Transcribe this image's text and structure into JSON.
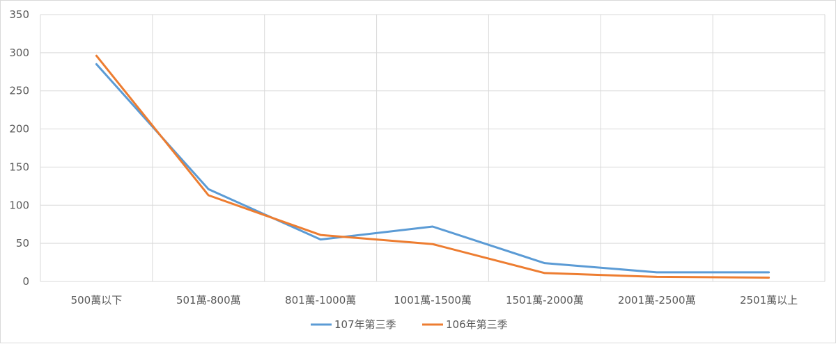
{
  "chart_data": {
    "type": "line",
    "categories": [
      "500萬以下",
      "501萬-800萬",
      "801萬-1000萬",
      "1001萬-1500萬",
      "1501萬-2000萬",
      "2001萬-2500萬",
      "2501萬以上"
    ],
    "series": [
      {
        "name": "107年第三季",
        "color": "#5b9bd5",
        "values": [
          285,
          121,
          55,
          72,
          24,
          12,
          12
        ]
      },
      {
        "name": "106年第三季",
        "color": "#ed7d31",
        "values": [
          296,
          113,
          61,
          49,
          11,
          6,
          5
        ]
      }
    ],
    "y_ticks": [
      "0",
      "50",
      "100",
      "150",
      "200",
      "250",
      "300",
      "350"
    ],
    "ylim": [
      0,
      350
    ],
    "grid": true,
    "legend_position": "bottom"
  }
}
